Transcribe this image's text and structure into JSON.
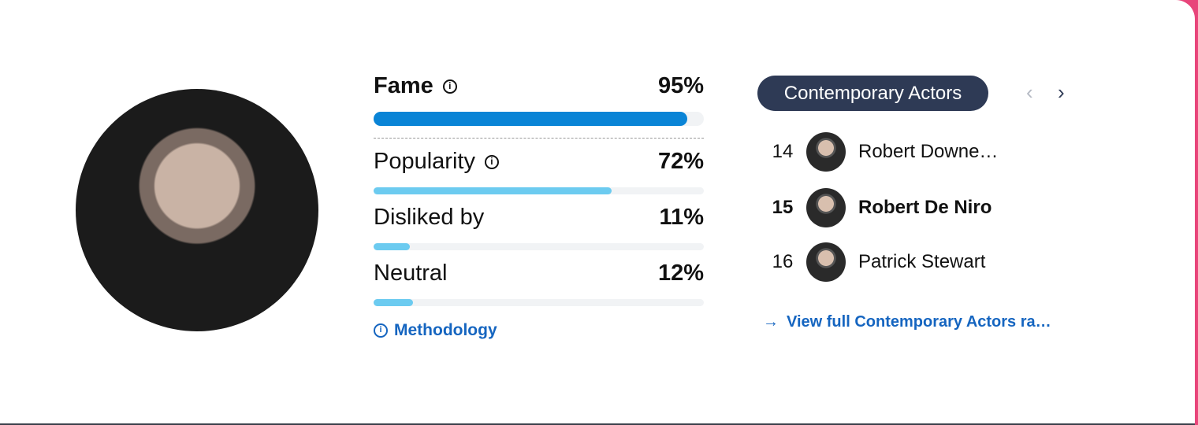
{
  "metrics": [
    {
      "label": "Fame",
      "value": 95,
      "value_label": "95%",
      "info": true
    },
    {
      "label": "Popularity",
      "value": 72,
      "value_label": "72%",
      "info": true
    },
    {
      "label": "Disliked by",
      "value": 11,
      "value_label": "11%",
      "info": false
    },
    {
      "label": "Neutral",
      "value": 12,
      "value_label": "12%",
      "info": false
    }
  ],
  "methodology": "Methodology",
  "ranking": {
    "category": "Contemporary Actors",
    "rows": [
      {
        "rank": "14",
        "name": "Robert Downe…",
        "current": false
      },
      {
        "rank": "15",
        "name": "Robert De Niro",
        "current": true
      },
      {
        "rank": "16",
        "name": "Patrick Stewart",
        "current": false
      }
    ],
    "link": "View full Contemporary Actors ra…"
  }
}
